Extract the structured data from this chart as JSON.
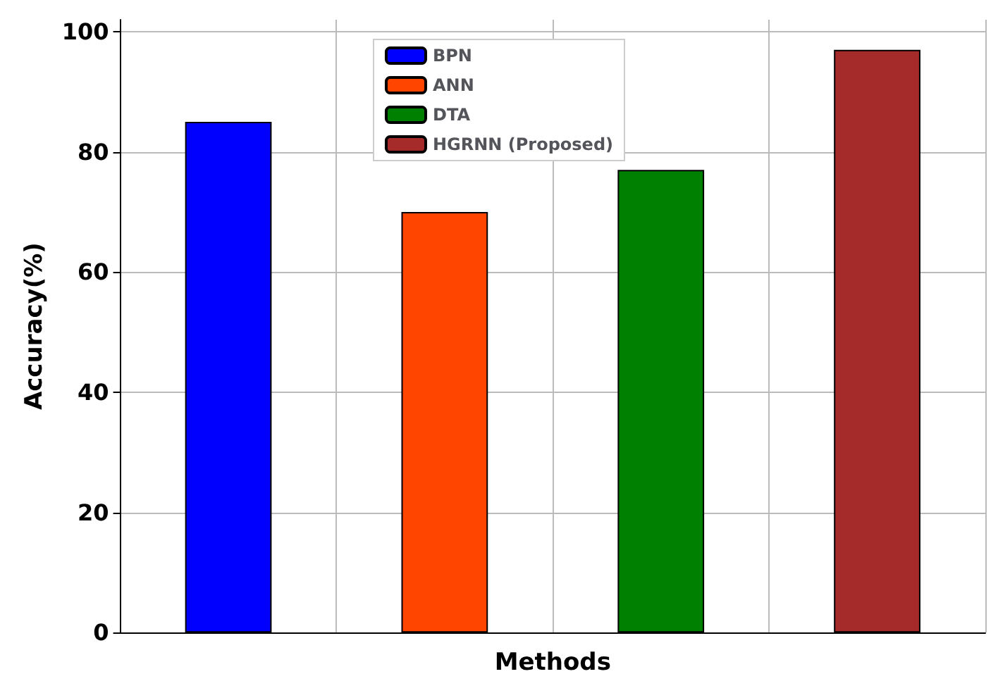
{
  "chart_data": {
    "type": "bar",
    "xlabel": "Methods",
    "ylabel": "Accuracy(%)",
    "categories": [
      null,
      null,
      null,
      null
    ],
    "series": [
      {
        "name": "BPN",
        "color": "#0000ff",
        "values": [
          85,
          null,
          null,
          null
        ]
      },
      {
        "name": "ANN",
        "color": "#ff4500",
        "values": [
          null,
          70,
          null,
          null
        ]
      },
      {
        "name": "DTA",
        "color": "#008000",
        "values": [
          null,
          null,
          77,
          null
        ]
      },
      {
        "name": "HGRNN (Proposed)",
        "color": "#a52a2a",
        "values": [
          null,
          null,
          null,
          97
        ]
      }
    ],
    "ylim": [
      0,
      102
    ],
    "yticks": [
      0,
      20,
      40,
      60,
      80,
      100
    ],
    "grid": true,
    "legend": "top"
  }
}
